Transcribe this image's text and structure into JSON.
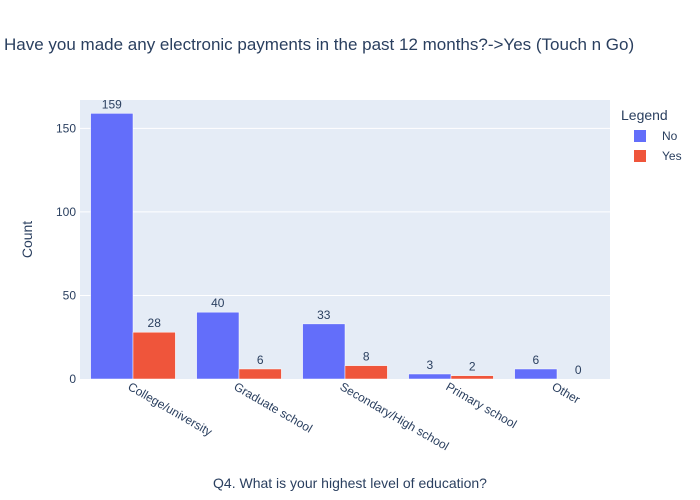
{
  "chart_data": {
    "type": "bar",
    "title": "Have you made any electronic payments in the past 12 months?->Yes (Touch n Go)",
    "xlabel": "Q4. What is your highest level of education?",
    "ylabel": "Count",
    "categories": [
      "College/university",
      "Graduate school",
      "Secondary/High school",
      "Primary school",
      "Other"
    ],
    "series": [
      {
        "name": "No",
        "values": [
          159,
          40,
          33,
          3,
          6
        ],
        "color": "#636efa"
      },
      {
        "name": "Yes",
        "values": [
          28,
          6,
          8,
          2,
          0
        ],
        "color": "#ef553b"
      }
    ],
    "ylim": [
      0,
      167
    ],
    "yticks": [
      0,
      50,
      100,
      150
    ],
    "grid": true,
    "legend": {
      "title": "Legend",
      "position": "top-right"
    },
    "plot_bg": "#e5ecf6"
  }
}
